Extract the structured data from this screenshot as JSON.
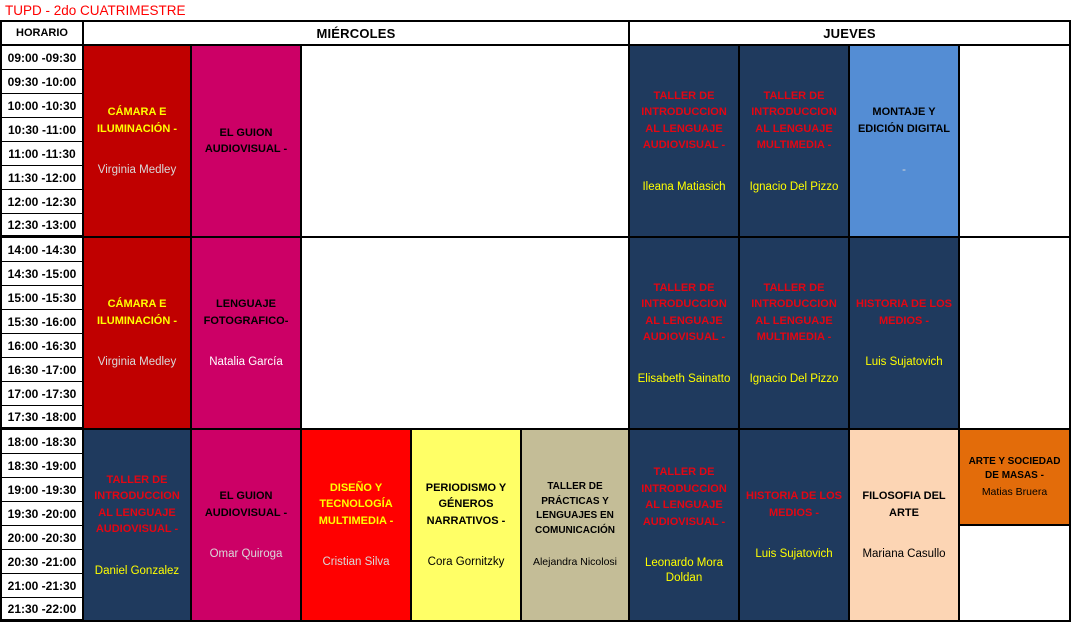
{
  "page_title": "TUPD - 2do CUATRIMESTRE",
  "header": {
    "horario": "HORARIO",
    "wednesday": "MIÉRCOLES",
    "thursday": "JUEVES"
  },
  "time_slots": [
    "09:00 -09:30",
    "09:30 -10:00",
    "10:00 -10:30",
    "10:30 -11:00",
    "11:00 -11:30",
    "11:30 -12:00",
    "12:00 -12:30",
    "12:30 -13:00",
    "14:00 -14:30",
    "14:30 -15:00",
    "15:00 -15:30",
    "15:30 -16:00",
    "16:00 -16:30",
    "16:30 -17:00",
    "17:00 -17:30",
    "17:30 -18:00",
    "18:00 -18:30",
    "18:30 -19:00",
    "19:00 -19:30",
    "19:30 -20:00",
    "20:00 -20:30",
    "20:30 -21:00",
    "21:00 -21:30",
    "21:30 -22:00"
  ],
  "section_end_rows": [
    7,
    15,
    23
  ],
  "colors": {
    "dark_red": "#C00000",
    "magenta": "#CC0066",
    "navy": "#1F3A5E",
    "cornflower_blue": "#548DD4",
    "bright_red": "#FF0000",
    "light_yellow": "#FFFF66",
    "tan": "#C4BD97",
    "peach": "#FCD5B4",
    "orange": "#E36C0A",
    "yellow_text": "#FFFF00",
    "red_text": "#E30613",
    "gray_text": "#D9D9D9",
    "white_text": "#FFFFFF",
    "black_text": "#000000",
    "title_red": "#FF0000"
  },
  "blocks": [
    {
      "id": "wed-morning-camara-iluminacion",
      "day": "MIÉRCOLES",
      "time": "09:00 - 13:00",
      "col": 2,
      "row": 0,
      "row_span": 8,
      "bg": "#C00000",
      "title": "CÁMARA E ILUMINACIÓN -",
      "title_color": "#FFFF00",
      "teacher": "Virginia Medley",
      "teacher_color": "#D9D9D9"
    },
    {
      "id": "wed-morning-el-guion-audiovisual",
      "day": "MIÉRCOLES",
      "time": "09:00 - 13:00",
      "col": 3,
      "row": 0,
      "row_span": 8,
      "bg": "#CC0066",
      "title": "EL GUION AUDIOVISUAL -",
      "title_color": "#000000"
    },
    {
      "id": "wed-morning-empty",
      "day": "MIÉRCOLES",
      "time": "09:00 - 13:00",
      "col": 4,
      "col_span": 3,
      "row": 0,
      "row_span": 8,
      "bg": "#FFFFFF"
    },
    {
      "id": "wed-afternoon-camara-iluminacion",
      "day": "MIÉRCOLES",
      "time": "14:00 - 18:00",
      "col": 2,
      "row": 8,
      "row_span": 8,
      "bg": "#C00000",
      "title": "CÁMARA E ILUMINACIÓN -",
      "title_color": "#FFFF00",
      "teacher": "Virginia Medley",
      "teacher_color": "#D9D9D9"
    },
    {
      "id": "wed-afternoon-lenguaje-fotografico",
      "day": "MIÉRCOLES",
      "time": "14:00 - 18:00",
      "col": 3,
      "row": 8,
      "row_span": 8,
      "bg": "#CC0066",
      "title": "LENGUAJE FOTOGRAFICO-",
      "title_color": "#000000",
      "teacher": "Natalia García",
      "teacher_color": "#FFFFFF"
    },
    {
      "id": "wed-afternoon-empty",
      "day": "MIÉRCOLES",
      "time": "14:00 - 18:00",
      "col": 4,
      "col_span": 3,
      "row": 8,
      "row_span": 8,
      "bg": "#FFFFFF"
    },
    {
      "id": "wed-evening-taller-intro-audiovisual",
      "day": "MIÉRCOLES",
      "time": "18:00 - 22:00",
      "col": 2,
      "row": 16,
      "row_span": 8,
      "bg": "#1F3A5E",
      "title": "TALLER DE INTRODUCCION AL LENGUAJE AUDIOVISUAL -",
      "title_color": "#E30613",
      "teacher": "Daniel Gonzalez",
      "teacher_color": "#FFFF00"
    },
    {
      "id": "wed-evening-el-guion-audiovisual",
      "day": "MIÉRCOLES",
      "time": "18:00 - 22:00",
      "col": 3,
      "row": 16,
      "row_span": 8,
      "bg": "#CC0066",
      "title": "EL GUION AUDIOVISUAL -",
      "title_color": "#000000",
      "teacher": "Omar Quiroga",
      "teacher_color": "#D9D9D9"
    },
    {
      "id": "wed-evening-diseno-tecnologia-multimedia",
      "day": "MIÉRCOLES",
      "time": "18:00 - 22:00",
      "col": 4,
      "row": 16,
      "row_span": 8,
      "bg": "#FF0000",
      "title": "DISEÑO Y TECNOLOGÍA MULTIMEDIA -",
      "title_color": "#FFFF00",
      "teacher": "Cristian Silva",
      "teacher_color": "#D9D9D9"
    },
    {
      "id": "wed-evening-periodismo-generos-narrativos",
      "day": "MIÉRCOLES",
      "time": "18:00 - 22:00",
      "col": 5,
      "row": 16,
      "row_span": 8,
      "bg": "#FFFF66",
      "title": "PERIODISMO Y GÉNEROS NARRATIVOS -",
      "title_color": "#000000",
      "teacher": "Cora Gornitzky",
      "teacher_color": "#000000"
    },
    {
      "id": "wed-evening-taller-practicas-lenguajes",
      "day": "MIÉRCOLES",
      "time": "18:00 - 22:00",
      "col": 6,
      "row": 16,
      "row_span": 8,
      "bg": "#C4BD97",
      "compact": true,
      "title": "TALLER DE PRÁCTICAS Y LENGUAJES EN COMUNICACIÓN",
      "title_color": "#000000",
      "teacher": "Alejandra Nicolosi",
      "teacher_color": "#000000"
    },
    {
      "id": "thu-morning-taller-intro-audiovisual",
      "day": "JUEVES",
      "time": "09:00 - 13:00",
      "col": 7,
      "row": 0,
      "row_span": 8,
      "bg": "#1F3A5E",
      "title": "TALLER DE INTRODUCCION AL LENGUAJE AUDIOVISUAL -",
      "title_color": "#E30613",
      "teacher": "Ileana Matiasich",
      "teacher_color": "#FFFF00"
    },
    {
      "id": "thu-morning-taller-intro-multimedia",
      "day": "JUEVES",
      "time": "09:00 - 13:00",
      "col": 8,
      "row": 0,
      "row_span": 8,
      "bg": "#1F3A5E",
      "title": "TALLER DE INTRODUCCION AL LENGUAJE MULTIMEDIA -",
      "title_color": "#E30613",
      "teacher": "Ignacio Del Pizzo",
      "teacher_color": "#FFFF00"
    },
    {
      "id": "thu-morning-montaje-edicion-digital",
      "day": "JUEVES",
      "time": "09:00 - 13:00",
      "col": 9,
      "row": 0,
      "row_span": 8,
      "bg": "#548DD4",
      "title": "MONTAJE Y EDICIÓN DIGITAL",
      "title_color": "#000000",
      "teacher": "-",
      "teacher_color": "#D9D9D9"
    },
    {
      "id": "thu-morning-empty",
      "day": "JUEVES",
      "time": "09:00 - 13:00",
      "col": 10,
      "row": 0,
      "row_span": 8,
      "bg": "#FFFFFF"
    },
    {
      "id": "thu-afternoon-taller-intro-audiovisual",
      "day": "JUEVES",
      "time": "14:00 - 18:00",
      "col": 7,
      "row": 8,
      "row_span": 8,
      "bg": "#1F3A5E",
      "title": "TALLER DE INTRODUCCION AL LENGUAJE AUDIOVISUAL -",
      "title_color": "#E30613",
      "teacher": "Elisabeth Sainatto",
      "teacher_color": "#FFFF00"
    },
    {
      "id": "thu-afternoon-taller-intro-multimedia",
      "day": "JUEVES",
      "time": "14:00 - 18:00",
      "col": 8,
      "row": 8,
      "row_span": 8,
      "bg": "#1F3A5E",
      "title": "TALLER DE INTRODUCCION AL LENGUAJE MULTIMEDIA -",
      "title_color": "#E30613",
      "teacher": "Ignacio Del Pizzo",
      "teacher_color": "#FFFF00"
    },
    {
      "id": "thu-afternoon-historia-de-los-medios",
      "day": "JUEVES",
      "time": "14:00 - 18:00",
      "col": 9,
      "row": 8,
      "row_span": 8,
      "bg": "#1F3A5E",
      "title": "HISTORIA DE LOS MEDIOS -",
      "title_color": "#E30613",
      "teacher": "Luis Sujatovich",
      "teacher_color": "#FFFF00"
    },
    {
      "id": "thu-afternoon-empty",
      "day": "JUEVES",
      "time": "14:00 - 18:00",
      "col": 10,
      "row": 8,
      "row_span": 8,
      "bg": "#FFFFFF"
    },
    {
      "id": "thu-evening-taller-intro-audiovisual",
      "day": "JUEVES",
      "time": "18:00 - 22:00",
      "col": 7,
      "row": 16,
      "row_span": 8,
      "bg": "#1F3A5E",
      "title": "TALLER DE INTRODUCCION AL LENGUAJE AUDIOVISUAL -",
      "title_color": "#E30613",
      "teacher": "Leonardo Mora Doldan",
      "teacher_color": "#FFFF00"
    },
    {
      "id": "thu-evening-historia-de-los-medios",
      "day": "JUEVES",
      "time": "18:00 - 22:00",
      "col": 8,
      "row": 16,
      "row_span": 8,
      "bg": "#1F3A5E",
      "title": "HISTORIA DE LOS MEDIOS -",
      "title_color": "#E30613",
      "teacher": "Luis Sujatovich",
      "teacher_color": "#FFFF00"
    },
    {
      "id": "thu-evening-filosofia-del-arte",
      "day": "JUEVES",
      "time": "18:00 - 22:00",
      "col": 9,
      "row": 16,
      "row_span": 8,
      "bg": "#FCD5B4",
      "title": "FILOSOFIA DEL ARTE",
      "title_color": "#000000",
      "teacher": "Mariana Casullo",
      "teacher_color": "#000000"
    },
    {
      "id": "thu-evening-arte-y-sociedad-de-masas",
      "day": "JUEVES",
      "time": "18:00 - 20:00",
      "col": 10,
      "row": 16,
      "row_span": 4,
      "bg": "#E36C0A",
      "compact": true,
      "title": "ARTE Y SOCIEDAD DE MASAS -",
      "title_color": "#000000",
      "teacher": "Matias Bruera",
      "teacher_color": "#000000"
    },
    {
      "id": "thu-evening-empty",
      "day": "JUEVES",
      "time": "20:00 - 22:00",
      "col": 10,
      "row": 20,
      "row_span": 4,
      "bg": "#FFFFFF"
    }
  ]
}
